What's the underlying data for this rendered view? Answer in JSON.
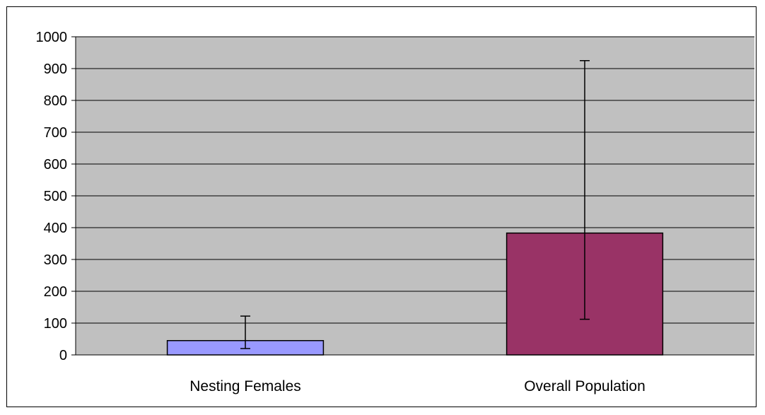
{
  "chart_data": {
    "type": "bar",
    "title": "",
    "xlabel": "",
    "ylabel": "",
    "categories": [
      "Nesting Females",
      "Overall Population"
    ],
    "values": [
      45,
      383
    ],
    "error_bars": [
      {
        "low": 20,
        "high": 122
      },
      {
        "low": 112,
        "high": 925
      }
    ],
    "ylim": [
      0,
      1000
    ],
    "yticks": [
      "0",
      "100",
      "200",
      "300",
      "400",
      "500",
      "600",
      "700",
      "800",
      "900",
      "1000"
    ],
    "grid": true,
    "legend": "none",
    "colors": {
      "plot_background": "#c0c0c0",
      "bars": [
        "#9999ff",
        "#993366"
      ],
      "gridline": "#000000"
    }
  }
}
